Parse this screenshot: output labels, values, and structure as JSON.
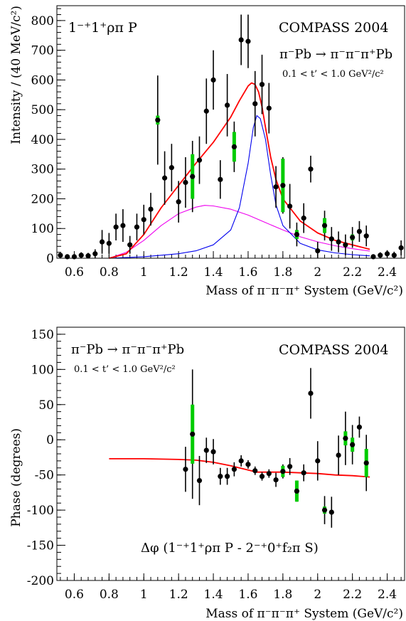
{
  "chart_data": [
    {
      "type": "scatter",
      "xlabel": "Mass of π⁻π⁻π⁺ System (GeV/c²)",
      "ylabel": "Intensity / (40 MeV/c²)",
      "xlim": [
        0.5,
        2.5
      ],
      "ylim": [
        0,
        850
      ],
      "xticks": [
        0.6,
        0.8,
        1,
        1.2,
        1.4,
        1.6,
        1.8,
        2,
        2.2,
        2.4
      ],
      "xtick_labels": [
        "0.6",
        "0.8",
        "1",
        "1.2",
        "1.4",
        "1.6",
        "1.8",
        "2",
        "2.2",
        "2.4"
      ],
      "yticks": [
        0,
        100,
        200,
        300,
        400,
        500,
        600,
        700,
        800
      ],
      "ytick_labels": [
        "0",
        "100",
        "200",
        "300",
        "400",
        "500",
        "600",
        "700",
        "800"
      ],
      "annotations": {
        "wave": "1⁻⁺1⁺ρπ P",
        "experiment": "COMPASS 2004",
        "reaction": "π⁻Pb → π⁻π⁻π⁺Pb",
        "tcut": "0.1 < t’ < 1.0 GeV²/c²"
      },
      "colors": {
        "total": "#ff0000",
        "bw": "#0000ee",
        "background": "#ee00ee",
        "sys": "#00cc00",
        "points": "#000000"
      },
      "points": [
        {
          "x": 0.52,
          "y": 10,
          "err": 8
        },
        {
          "x": 0.56,
          "y": 5,
          "err": 8
        },
        {
          "x": 0.6,
          "y": 5,
          "err": 8
        },
        {
          "x": 0.64,
          "y": 10,
          "err": 10
        },
        {
          "x": 0.68,
          "y": 8,
          "err": 10
        },
        {
          "x": 0.72,
          "y": 15,
          "err": 15
        },
        {
          "x": 0.76,
          "y": 55,
          "err": 40
        },
        {
          "x": 0.8,
          "y": 50,
          "err": 35
        },
        {
          "x": 0.84,
          "y": 105,
          "err": 45
        },
        {
          "x": 0.88,
          "y": 110,
          "err": 55
        },
        {
          "x": 0.92,
          "y": 45,
          "err": 30
        },
        {
          "x": 0.96,
          "y": 105,
          "err": 45
        },
        {
          "x": 1.0,
          "y": 130,
          "err": 50
        },
        {
          "x": 1.04,
          "y": 165,
          "err": 55
        },
        {
          "x": 1.08,
          "y": 465,
          "err": 150,
          "sys": 15
        },
        {
          "x": 1.12,
          "y": 270,
          "err": 90
        },
        {
          "x": 1.16,
          "y": 305,
          "err": 80
        },
        {
          "x": 1.2,
          "y": 190,
          "err": 70
        },
        {
          "x": 1.24,
          "y": 255,
          "err": 85
        },
        {
          "x": 1.28,
          "y": 275,
          "err": 120,
          "sys": 75
        },
        {
          "x": 1.32,
          "y": 330,
          "err": 80
        },
        {
          "x": 1.36,
          "y": 495,
          "err": 110
        },
        {
          "x": 1.4,
          "y": 600,
          "err": 100
        },
        {
          "x": 1.44,
          "y": 265,
          "err": 65
        },
        {
          "x": 1.48,
          "y": 515,
          "err": 105
        },
        {
          "x": 1.52,
          "y": 375,
          "err": 85,
          "sys": 50
        },
        {
          "x": 1.56,
          "y": 735,
          "err": 85
        },
        {
          "x": 1.6,
          "y": 730,
          "err": 90
        },
        {
          "x": 1.64,
          "y": 520,
          "err": 110
        },
        {
          "x": 1.68,
          "y": 585,
          "err": 100
        },
        {
          "x": 1.72,
          "y": 505,
          "err": 85
        },
        {
          "x": 1.76,
          "y": 240,
          "err": 70
        },
        {
          "x": 1.8,
          "y": 245,
          "err": 95,
          "sys": 90
        },
        {
          "x": 1.84,
          "y": 175,
          "err": 75
        },
        {
          "x": 1.88,
          "y": 80,
          "err": 40,
          "sys": 15
        },
        {
          "x": 1.92,
          "y": 135,
          "err": 50
        },
        {
          "x": 1.96,
          "y": 300,
          "err": 45
        },
        {
          "x": 2.0,
          "y": 25,
          "err": 30
        },
        {
          "x": 2.04,
          "y": 110,
          "err": 50,
          "sys": 25
        },
        {
          "x": 2.08,
          "y": 65,
          "err": 40
        },
        {
          "x": 2.12,
          "y": 55,
          "err": 35
        },
        {
          "x": 2.16,
          "y": 45,
          "err": 35
        },
        {
          "x": 2.2,
          "y": 70,
          "err": 35,
          "sys": 10
        },
        {
          "x": 2.24,
          "y": 90,
          "err": 35
        },
        {
          "x": 2.28,
          "y": 75,
          "err": 35
        },
        {
          "x": 2.32,
          "y": 5,
          "err": 8
        },
        {
          "x": 2.36,
          "y": 10,
          "err": 10
        },
        {
          "x": 2.4,
          "y": 15,
          "err": 12
        },
        {
          "x": 2.44,
          "y": 10,
          "err": 12
        },
        {
          "x": 2.48,
          "y": 35,
          "err": 25
        }
      ],
      "curves": {
        "total": [
          [
            0.8,
            0
          ],
          [
            0.9,
            15
          ],
          [
            1.0,
            80
          ],
          [
            1.1,
            170
          ],
          [
            1.2,
            245
          ],
          [
            1.3,
            320
          ],
          [
            1.4,
            390
          ],
          [
            1.5,
            475
          ],
          [
            1.55,
            530
          ],
          [
            1.6,
            580
          ],
          [
            1.62,
            590
          ],
          [
            1.64,
            585
          ],
          [
            1.66,
            560
          ],
          [
            1.68,
            510
          ],
          [
            1.7,
            440
          ],
          [
            1.73,
            340
          ],
          [
            1.76,
            265
          ],
          [
            1.8,
            200
          ],
          [
            1.9,
            125
          ],
          [
            2.0,
            85
          ],
          [
            2.1,
            60
          ],
          [
            2.2,
            45
          ],
          [
            2.3,
            30
          ]
        ],
        "bw": [
          [
            0.8,
            0
          ],
          [
            1.0,
            5
          ],
          [
            1.2,
            15
          ],
          [
            1.3,
            25
          ],
          [
            1.4,
            45
          ],
          [
            1.5,
            95
          ],
          [
            1.55,
            170
          ],
          [
            1.6,
            320
          ],
          [
            1.63,
            440
          ],
          [
            1.65,
            480
          ],
          [
            1.67,
            470
          ],
          [
            1.7,
            400
          ],
          [
            1.73,
            280
          ],
          [
            1.76,
            180
          ],
          [
            1.8,
            110
          ],
          [
            1.9,
            50
          ],
          [
            2.0,
            28
          ],
          [
            2.1,
            18
          ],
          [
            2.2,
            12
          ],
          [
            2.3,
            8
          ]
        ],
        "background": [
          [
            0.8,
            0
          ],
          [
            0.9,
            20
          ],
          [
            1.0,
            60
          ],
          [
            1.1,
            110
          ],
          [
            1.2,
            150
          ],
          [
            1.3,
            172
          ],
          [
            1.35,
            178
          ],
          [
            1.4,
            176
          ],
          [
            1.5,
            165
          ],
          [
            1.6,
            145
          ],
          [
            1.7,
            120
          ],
          [
            1.8,
            95
          ],
          [
            1.9,
            72
          ],
          [
            2.0,
            55
          ],
          [
            2.1,
            42
          ],
          [
            2.2,
            32
          ],
          [
            2.3,
            24
          ]
        ]
      }
    },
    {
      "type": "scatter",
      "xlabel": "Mass of π⁻π⁻π⁺ System (GeV/c²)",
      "ylabel": "Phase (degrees)",
      "xlim": [
        0.5,
        2.5
      ],
      "ylim": [
        -200,
        160
      ],
      "xticks": [
        0.6,
        0.8,
        1,
        1.2,
        1.4,
        1.6,
        1.8,
        2,
        2.2,
        2.4
      ],
      "xtick_labels": [
        "0.6",
        "0.8",
        "1",
        "1.2",
        "1.4",
        "1.6",
        "1.8",
        "2",
        "2.2",
        "2.4"
      ],
      "yticks": [
        -200,
        -150,
        -100,
        -50,
        0,
        50,
        100,
        150
      ],
      "ytick_labels": [
        "-200",
        "-150",
        "-100",
        "-50",
        "0",
        "50",
        "100",
        "150"
      ],
      "annotations": {
        "experiment": "COMPASS 2004",
        "reaction": "π⁻Pb → π⁻π⁻π⁺Pb",
        "tcut": "0.1 < t’ < 1.0 GeV²/c²",
        "delta": "Δφ (1⁻⁺1⁺ρπ P - 2⁻⁺0⁺f₂π S)"
      },
      "colors": {
        "total": "#ff0000",
        "sys": "#00cc00",
        "points": "#000000"
      },
      "points": [
        {
          "x": 1.24,
          "y": -42,
          "err": 32
        },
        {
          "x": 1.28,
          "y": 8,
          "err": 92,
          "sys": 42
        },
        {
          "x": 1.32,
          "y": -58,
          "err": 35
        },
        {
          "x": 1.36,
          "y": -15,
          "err": 18
        },
        {
          "x": 1.4,
          "y": -17,
          "err": 18
        },
        {
          "x": 1.44,
          "y": -52,
          "err": 12
        },
        {
          "x": 1.48,
          "y": -52,
          "err": 12
        },
        {
          "x": 1.52,
          "y": -42,
          "err": 10
        },
        {
          "x": 1.56,
          "y": -30,
          "err": 8
        },
        {
          "x": 1.6,
          "y": -35,
          "err": 6
        },
        {
          "x": 1.64,
          "y": -44,
          "err": 6
        },
        {
          "x": 1.68,
          "y": -52,
          "err": 6
        },
        {
          "x": 1.72,
          "y": -48,
          "err": 6
        },
        {
          "x": 1.76,
          "y": -57,
          "err": 10
        },
        {
          "x": 1.8,
          "y": -45,
          "err": 10,
          "sys": 8
        },
        {
          "x": 1.84,
          "y": -38,
          "err": 12
        },
        {
          "x": 1.88,
          "y": -73,
          "err": 15,
          "sys": 15
        },
        {
          "x": 1.92,
          "y": -47,
          "err": 12
        },
        {
          "x": 1.96,
          "y": 66,
          "err": 36
        },
        {
          "x": 2.0,
          "y": -30,
          "err": 28
        },
        {
          "x": 2.04,
          "y": -100,
          "err": 20,
          "sys": 5
        },
        {
          "x": 2.08,
          "y": -103,
          "err": 22
        },
        {
          "x": 2.12,
          "y": -22,
          "err": 28
        },
        {
          "x": 2.16,
          "y": 2,
          "err": 38,
          "sys": 10
        },
        {
          "x": 2.2,
          "y": -7,
          "err": 28,
          "sys": 10
        },
        {
          "x": 2.24,
          "y": 18,
          "err": 15
        },
        {
          "x": 2.28,
          "y": -33,
          "err": 40,
          "sys": 20
        }
      ],
      "curves": {
        "total": [
          [
            0.8,
            -27
          ],
          [
            1.0,
            -27
          ],
          [
            1.2,
            -28
          ],
          [
            1.3,
            -29
          ],
          [
            1.4,
            -32
          ],
          [
            1.5,
            -37
          ],
          [
            1.55,
            -40
          ],
          [
            1.6,
            -43
          ],
          [
            1.65,
            -46
          ],
          [
            1.7,
            -46
          ],
          [
            1.75,
            -46
          ],
          [
            1.8,
            -46
          ],
          [
            1.9,
            -47
          ],
          [
            2.0,
            -48
          ],
          [
            2.1,
            -50
          ],
          [
            2.2,
            -51
          ],
          [
            2.3,
            -53
          ]
        ]
      }
    }
  ]
}
